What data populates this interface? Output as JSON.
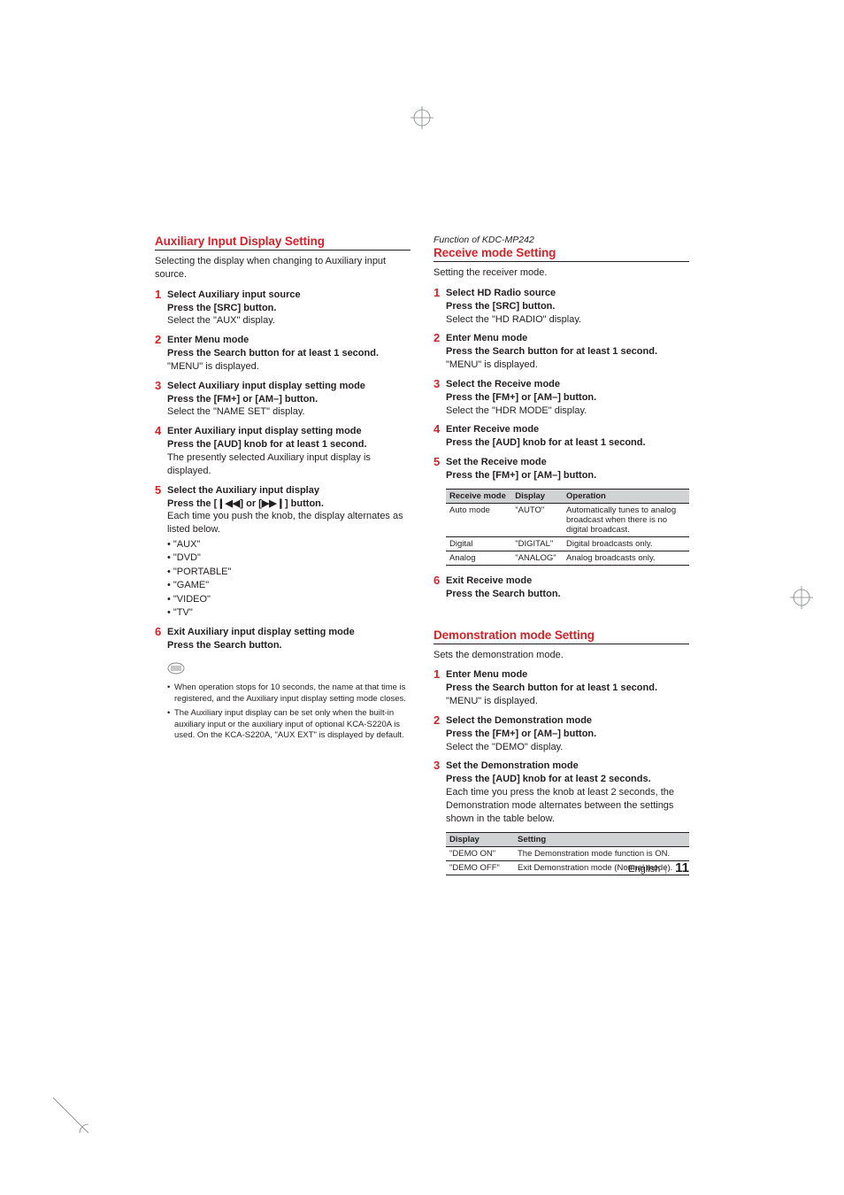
{
  "colors": {
    "accent": "#d2232a",
    "text": "#231f20",
    "table_header_bg": "#d1d2d4",
    "note_icon": "#808285"
  },
  "left": {
    "aux": {
      "title": "Auxiliary Input Display Setting",
      "intro": "Selecting the display when changing to Auxiliary input source.",
      "steps": [
        {
          "n": "1",
          "title": "Select Auxiliary input source",
          "press": "Press the [SRC] button.",
          "text": "Select the \"AUX\" display."
        },
        {
          "n": "2",
          "title": "Enter Menu mode",
          "press": "Press the Search button for at least 1 second.",
          "text": "\"MENU\" is displayed."
        },
        {
          "n": "3",
          "title": "Select Auxiliary input display setting mode",
          "press": "Press the [FM+] or [AM–] button.",
          "text": "Select the \"NAME SET\" display."
        },
        {
          "n": "4",
          "title": "Enter Auxiliary input display setting mode",
          "press": "Press the [AUD] knob for at least 1 second.",
          "text": "The presently selected Auxiliary input display is displayed."
        },
        {
          "n": "5",
          "title": "Select the Auxiliary input display",
          "press": "Press the [❙◀◀] or [▶▶❙] button.",
          "text": "Each time you push the knob, the display alternates as listed below.",
          "bullets": [
            "• \"AUX\"",
            "• \"DVD\"",
            "• \"PORTABLE\"",
            "• \"GAME\"",
            "• \"VIDEO\"",
            "• \"TV\""
          ]
        },
        {
          "n": "6",
          "title": "Exit Auxiliary input display setting mode",
          "press": "Press the Search button."
        }
      ],
      "notes": [
        "When operation stops for 10 seconds, the name at that time is registered, and the Auxiliary input display setting mode closes.",
        "The Auxiliary input display can be set only when the built-in auxiliary input or the auxiliary input of optional KCA-S220A is used. On the KCA-S220A, \"AUX EXT\" is displayed by default."
      ]
    }
  },
  "right": {
    "receive": {
      "func": "Function of KDC-MP242",
      "title": "Receive mode Setting",
      "intro": "Setting the receiver mode.",
      "steps": [
        {
          "n": "1",
          "title": "Select HD Radio source",
          "press": "Press the [SRC] button.",
          "text": "Select the \"HD RADIO\" display."
        },
        {
          "n": "2",
          "title": "Enter Menu mode",
          "press": "Press the Search button for at least 1 second.",
          "text": "\"MENU\" is displayed."
        },
        {
          "n": "3",
          "title": "Select the Receive mode",
          "press": "Press the [FM+] or [AM–] button.",
          "text": "Select the \"HDR MODE\" display."
        },
        {
          "n": "4",
          "title": "Enter Receive mode",
          "press": "Press the [AUD] knob for at least 1 second."
        },
        {
          "n": "5",
          "title": "Set the Receive mode",
          "press": "Press the [FM+] or [AM–] button."
        }
      ],
      "table": {
        "headers": [
          "Receive mode",
          "Display",
          "Operation"
        ],
        "rows": [
          [
            "Auto mode",
            "\"AUTO\"",
            "Automatically tunes to analog broadcast when there is no digital broadcast."
          ],
          [
            "Digital",
            "\"DIGITAL\"",
            "Digital broadcasts only."
          ],
          [
            "Analog",
            "\"ANALOG\"",
            "Analog broadcasts only."
          ]
        ],
        "col_widths": [
          "27%",
          "21%",
          "52%"
        ]
      },
      "step6": {
        "n": "6",
        "title": "Exit Receive mode",
        "press": "Press the Search button."
      }
    },
    "demo": {
      "title": "Demonstration mode Setting",
      "intro": "Sets the demonstration mode.",
      "steps": [
        {
          "n": "1",
          "title": "Enter Menu mode",
          "press": "Press the Search button for at least 1 second.",
          "text": "\"MENU\" is displayed."
        },
        {
          "n": "2",
          "title": "Select the Demonstration mode",
          "press": "Press the [FM+] or [AM–] button.",
          "text": "Select the \"DEMO\" display."
        },
        {
          "n": "3",
          "title": "Set the Demonstration mode",
          "press": "Press the [AUD] knob for at least 2 seconds.",
          "text": "Each time you press the knob at least 2 seconds, the Demonstration mode alternates between the settings shown in the table below."
        }
      ],
      "table": {
        "headers": [
          "Display",
          "Setting"
        ],
        "rows": [
          [
            "\"DEMO ON\"",
            "The Demonstration mode function is ON."
          ],
          [
            "\"DEMO OFF\"",
            "Exit Demonstration mode (Normal mode)."
          ]
        ],
        "col_widths": [
          "28%",
          "72%"
        ]
      }
    }
  },
  "footer": {
    "lang": "English",
    "page": "11"
  }
}
